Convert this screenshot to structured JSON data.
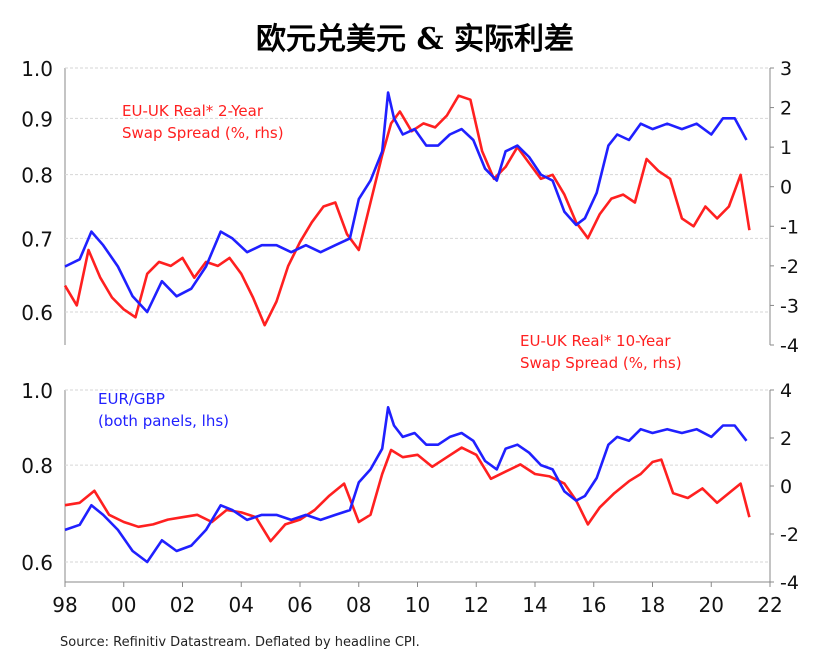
{
  "title": "欧元兑美元 & 实际利差",
  "source": "Source: Refinitiv Datastream. Deflated by headline CPI.",
  "colors": {
    "eurgbp": "#2020ff",
    "spread": "#ff2020",
    "grid": "#d6d6d6",
    "axis": "#888888"
  },
  "legend": {
    "top_line1": "EU-UK Real* 2-Year",
    "top_line2": "Swap Spread (%, rhs)",
    "mid_line1": "EU-UK  Real* 10-Year",
    "mid_line2": "Swap Spread (%, rhs)",
    "bot_line1": "EUR/GBP",
    "bot_line2": "(both panels, lhs)"
  },
  "chart_data": [
    {
      "type": "line",
      "panel": "top",
      "x_ticks": [
        "98",
        "00",
        "02",
        "04",
        "06",
        "08",
        "10",
        "12",
        "14",
        "16",
        "18",
        "20",
        "22"
      ],
      "xlim": [
        1998,
        2022
      ],
      "left_axis": {
        "ticks": [
          "1.0",
          "0.9",
          "0.8",
          "0.7",
          "0.6"
        ],
        "tick_values": [
          1.0,
          0.9,
          0.8,
          0.7,
          0.6
        ],
        "log_scale": true,
        "ylim": [
          0.56,
          1.0
        ]
      },
      "right_axis": {
        "ticks": [
          "3",
          "2",
          "1",
          "0",
          "-1",
          "-2",
          "-3",
          "-4"
        ],
        "tick_values": [
          3,
          2,
          1,
          0,
          -1,
          -2,
          -3,
          -4
        ],
        "ylim": [
          -4,
          3
        ]
      },
      "series": [
        {
          "name": "EUR/GBP",
          "axis": "left",
          "x": [
            1998.0,
            1998.5,
            1998.9,
            1999.3,
            1999.8,
            2000.3,
            2000.8,
            2001.3,
            2001.8,
            2002.3,
            2002.8,
            2003.3,
            2003.7,
            2004.2,
            2004.7,
            2005.2,
            2005.7,
            2006.2,
            2006.7,
            2007.2,
            2007.7,
            2008.0,
            2008.4,
            2008.8,
            2009.0,
            2009.2,
            2009.5,
            2009.9,
            2010.3,
            2010.7,
            2011.1,
            2011.5,
            2011.9,
            2012.3,
            2012.7,
            2013.0,
            2013.4,
            2013.8,
            2014.2,
            2014.6,
            2015.0,
            2015.4,
            2015.7,
            2016.1,
            2016.5,
            2016.8,
            2017.2,
            2017.6,
            2018.0,
            2018.5,
            2019.0,
            2019.5,
            2020.0,
            2020.4,
            2020.8,
            2021.2
          ],
          "values": [
            0.66,
            0.67,
            0.71,
            0.69,
            0.66,
            0.62,
            0.6,
            0.64,
            0.62,
            0.63,
            0.66,
            0.71,
            0.7,
            0.68,
            0.69,
            0.69,
            0.68,
            0.69,
            0.68,
            0.69,
            0.7,
            0.76,
            0.79,
            0.84,
            0.95,
            0.9,
            0.87,
            0.88,
            0.85,
            0.85,
            0.87,
            0.88,
            0.86,
            0.81,
            0.79,
            0.84,
            0.85,
            0.83,
            0.8,
            0.79,
            0.74,
            0.72,
            0.73,
            0.77,
            0.85,
            0.87,
            0.86,
            0.89,
            0.88,
            0.89,
            0.88,
            0.89,
            0.87,
            0.9,
            0.9,
            0.86
          ]
        },
        {
          "name": "EU-UK Real* 2-Year Swap Spread (%, rhs)",
          "axis": "right",
          "x": [
            1998.0,
            1998.4,
            1998.8,
            1999.2,
            1999.6,
            2000.0,
            2000.4,
            2000.8,
            2001.2,
            2001.6,
            2002.0,
            2002.4,
            2002.8,
            2003.2,
            2003.6,
            2004.0,
            2004.4,
            2004.8,
            2005.2,
            2005.6,
            2006.0,
            2006.4,
            2006.8,
            2007.2,
            2007.6,
            2008.0,
            2008.4,
            2008.8,
            2009.1,
            2009.4,
            2009.8,
            2010.2,
            2010.6,
            2011.0,
            2011.4,
            2011.8,
            2012.2,
            2012.6,
            2013.0,
            2013.4,
            2013.8,
            2014.2,
            2014.6,
            2015.0,
            2015.4,
            2015.8,
            2016.2,
            2016.6,
            2017.0,
            2017.4,
            2017.8,
            2018.2,
            2018.6,
            2019.0,
            2019.4,
            2019.8,
            2020.2,
            2020.6,
            2021.0,
            2021.3
          ],
          "values": [
            -2.5,
            -3.0,
            -1.6,
            -2.3,
            -2.8,
            -3.1,
            -3.3,
            -2.2,
            -1.9,
            -2.0,
            -1.8,
            -2.3,
            -1.9,
            -2.0,
            -1.8,
            -2.2,
            -2.8,
            -3.5,
            -2.9,
            -2.0,
            -1.4,
            -0.9,
            -0.5,
            -0.4,
            -1.2,
            -1.6,
            -0.4,
            0.8,
            1.6,
            1.9,
            1.4,
            1.6,
            1.5,
            1.8,
            2.3,
            2.2,
            0.9,
            0.2,
            0.5,
            1.0,
            0.6,
            0.2,
            0.3,
            -0.2,
            -0.9,
            -1.3,
            -0.7,
            -0.3,
            -0.2,
            -0.4,
            0.7,
            0.4,
            0.2,
            -0.8,
            -1.0,
            -0.5,
            -0.8,
            -0.5,
            0.3,
            -1.1
          ]
        }
      ]
    },
    {
      "type": "line",
      "panel": "bottom",
      "x_ticks": [
        "98",
        "00",
        "02",
        "04",
        "06",
        "08",
        "10",
        "12",
        "14",
        "16",
        "18",
        "20",
        "22"
      ],
      "xlim": [
        1998,
        2022
      ],
      "left_axis": {
        "ticks": [
          "1.0",
          "0.8",
          "0.6"
        ],
        "tick_values": [
          1.0,
          0.8,
          0.6
        ],
        "log_scale": true,
        "ylim": [
          0.56,
          1.0
        ]
      },
      "right_axis": {
        "ticks": [
          "4",
          "2",
          "0",
          "-2",
          "-4"
        ],
        "tick_values": [
          4,
          2,
          0,
          -2,
          -4
        ],
        "ylim": [
          -4,
          4
        ]
      },
      "series": [
        {
          "name": "EUR/GBP",
          "axis": "left",
          "x": [
            1998.0,
            1998.5,
            1998.9,
            1999.3,
            1999.8,
            2000.3,
            2000.8,
            2001.3,
            2001.8,
            2002.3,
            2002.8,
            2003.3,
            2003.7,
            2004.2,
            2004.7,
            2005.2,
            2005.7,
            2006.2,
            2006.7,
            2007.2,
            2007.7,
            2008.0,
            2008.4,
            2008.8,
            2009.0,
            2009.2,
            2009.5,
            2009.9,
            2010.3,
            2010.7,
            2011.1,
            2011.5,
            2011.9,
            2012.3,
            2012.7,
            2013.0,
            2013.4,
            2013.8,
            2014.2,
            2014.6,
            2015.0,
            2015.4,
            2015.7,
            2016.1,
            2016.5,
            2016.8,
            2017.2,
            2017.6,
            2018.0,
            2018.5,
            2019.0,
            2019.5,
            2020.0,
            2020.4,
            2020.8,
            2021.2
          ],
          "values": [
            0.66,
            0.67,
            0.71,
            0.69,
            0.66,
            0.62,
            0.6,
            0.64,
            0.62,
            0.63,
            0.66,
            0.71,
            0.7,
            0.68,
            0.69,
            0.69,
            0.68,
            0.69,
            0.68,
            0.69,
            0.7,
            0.76,
            0.79,
            0.84,
            0.95,
            0.9,
            0.87,
            0.88,
            0.85,
            0.85,
            0.87,
            0.88,
            0.86,
            0.81,
            0.79,
            0.84,
            0.85,
            0.83,
            0.8,
            0.79,
            0.74,
            0.72,
            0.73,
            0.77,
            0.85,
            0.87,
            0.86,
            0.89,
            0.88,
            0.89,
            0.88,
            0.89,
            0.87,
            0.9,
            0.9,
            0.86
          ]
        },
        {
          "name": "EU-UK Real* 10-Year Swap Spread (%, rhs)",
          "axis": "right",
          "x": [
            1998.0,
            1998.5,
            1999.0,
            1999.5,
            2000.0,
            2000.5,
            2001.0,
            2001.5,
            2002.0,
            2002.5,
            2003.0,
            2003.5,
            2004.0,
            2004.5,
            2005.0,
            2005.5,
            2006.0,
            2006.5,
            2007.0,
            2007.5,
            2008.0,
            2008.4,
            2008.8,
            2009.1,
            2009.5,
            2010.0,
            2010.5,
            2011.0,
            2011.5,
            2012.0,
            2012.5,
            2013.0,
            2013.5,
            2014.0,
            2014.5,
            2015.0,
            2015.4,
            2015.8,
            2016.2,
            2016.7,
            2017.2,
            2017.6,
            2018.0,
            2018.3,
            2018.7,
            2019.2,
            2019.7,
            2020.2,
            2020.7,
            2021.0,
            2021.3
          ],
          "values": [
            -0.8,
            -0.7,
            -0.2,
            -1.2,
            -1.5,
            -1.7,
            -1.6,
            -1.4,
            -1.3,
            -1.2,
            -1.5,
            -1.0,
            -1.1,
            -1.3,
            -2.3,
            -1.6,
            -1.4,
            -1.0,
            -0.4,
            0.1,
            -1.5,
            -1.2,
            0.5,
            1.5,
            1.2,
            1.3,
            0.8,
            1.2,
            1.6,
            1.3,
            0.3,
            0.6,
            0.9,
            0.5,
            0.4,
            0.1,
            -0.6,
            -1.6,
            -0.9,
            -0.3,
            0.2,
            0.5,
            1.0,
            1.1,
            -0.3,
            -0.5,
            -0.1,
            -0.7,
            -0.2,
            0.1,
            -1.3
          ]
        }
      ]
    }
  ]
}
